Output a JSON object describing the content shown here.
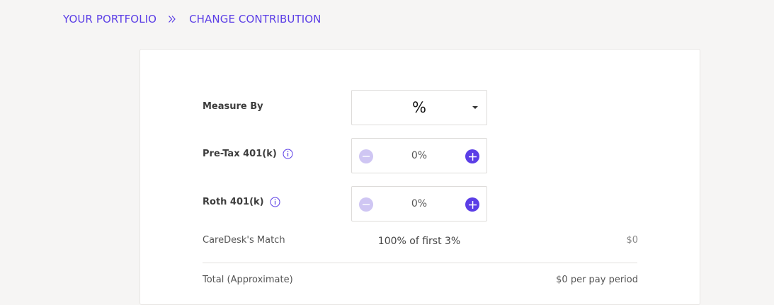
{
  "breadcrumb": {
    "parent": "YOUR PORTFOLIO",
    "current": "CHANGE CONTRIBUTION"
  },
  "form": {
    "measure_by": {
      "label": "Measure By",
      "value": "%"
    },
    "pre_tax": {
      "label": "Pre-Tax 401(k)",
      "value": "0%"
    },
    "roth": {
      "label": "Roth 401(k)",
      "value": "0%"
    },
    "match": {
      "label": "CareDesk's Match",
      "description": "100% of first 3%",
      "amount": "$0"
    },
    "total": {
      "label": "Total (Approximate)",
      "amount": "$0 per pay period"
    }
  },
  "colors": {
    "accent": "#5b3ee6",
    "accent_light": "#cfc6f3",
    "background": "#f6f5f4"
  }
}
